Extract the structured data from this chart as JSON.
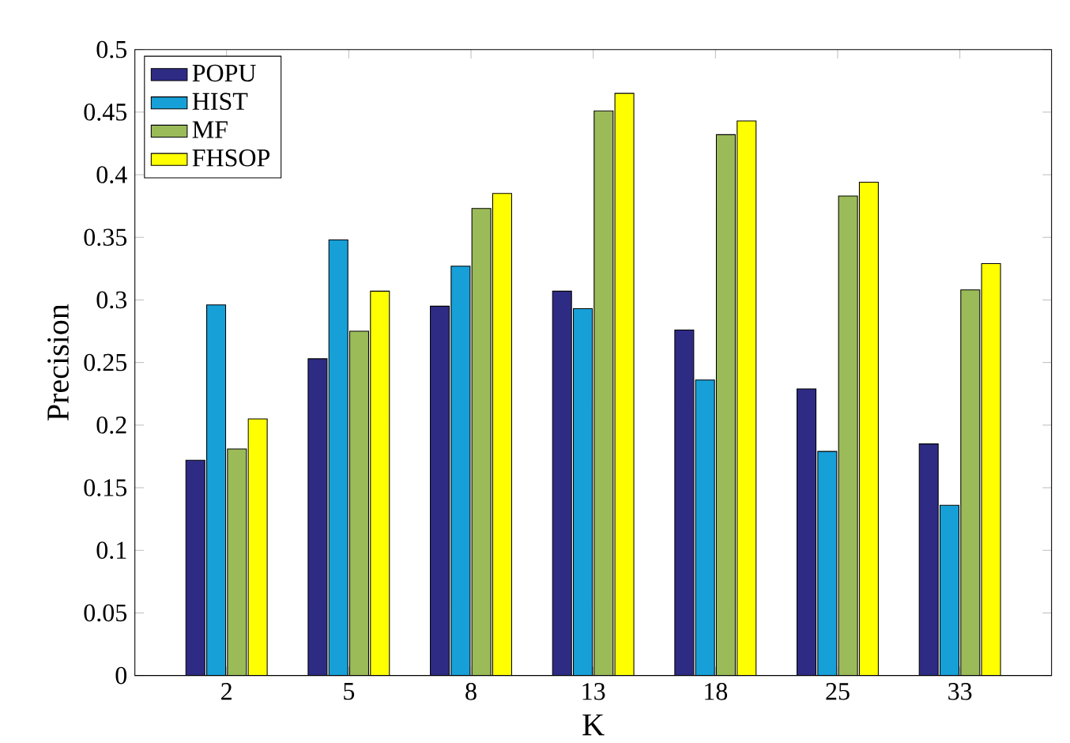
{
  "chart_data": {
    "type": "bar",
    "xlabel": "K",
    "ylabel": "Precision",
    "categories": [
      "2",
      "5",
      "8",
      "13",
      "18",
      "25",
      "33"
    ],
    "series": [
      {
        "name": "POPU",
        "color": "#2e2b85",
        "values": [
          0.172,
          0.253,
          0.295,
          0.307,
          0.276,
          0.229,
          0.185
        ]
      },
      {
        "name": "HIST",
        "color": "#17a0d8",
        "values": [
          0.296,
          0.348,
          0.327,
          0.293,
          0.236,
          0.179,
          0.136
        ]
      },
      {
        "name": "MF",
        "color": "#9bbb59",
        "values": [
          0.181,
          0.275,
          0.373,
          0.451,
          0.432,
          0.383,
          0.308
        ]
      },
      {
        "name": "FHSOP",
        "color": "#ffff00",
        "values": [
          0.205,
          0.307,
          0.385,
          0.465,
          0.443,
          0.394,
          0.329
        ]
      }
    ],
    "ylim": [
      0,
      0.5
    ],
    "yticks": [
      0,
      0.05,
      0.1,
      0.15,
      0.2,
      0.25,
      0.3,
      0.35,
      0.4,
      0.45,
      0.5
    ],
    "legend": "top left",
    "grid": false
  }
}
